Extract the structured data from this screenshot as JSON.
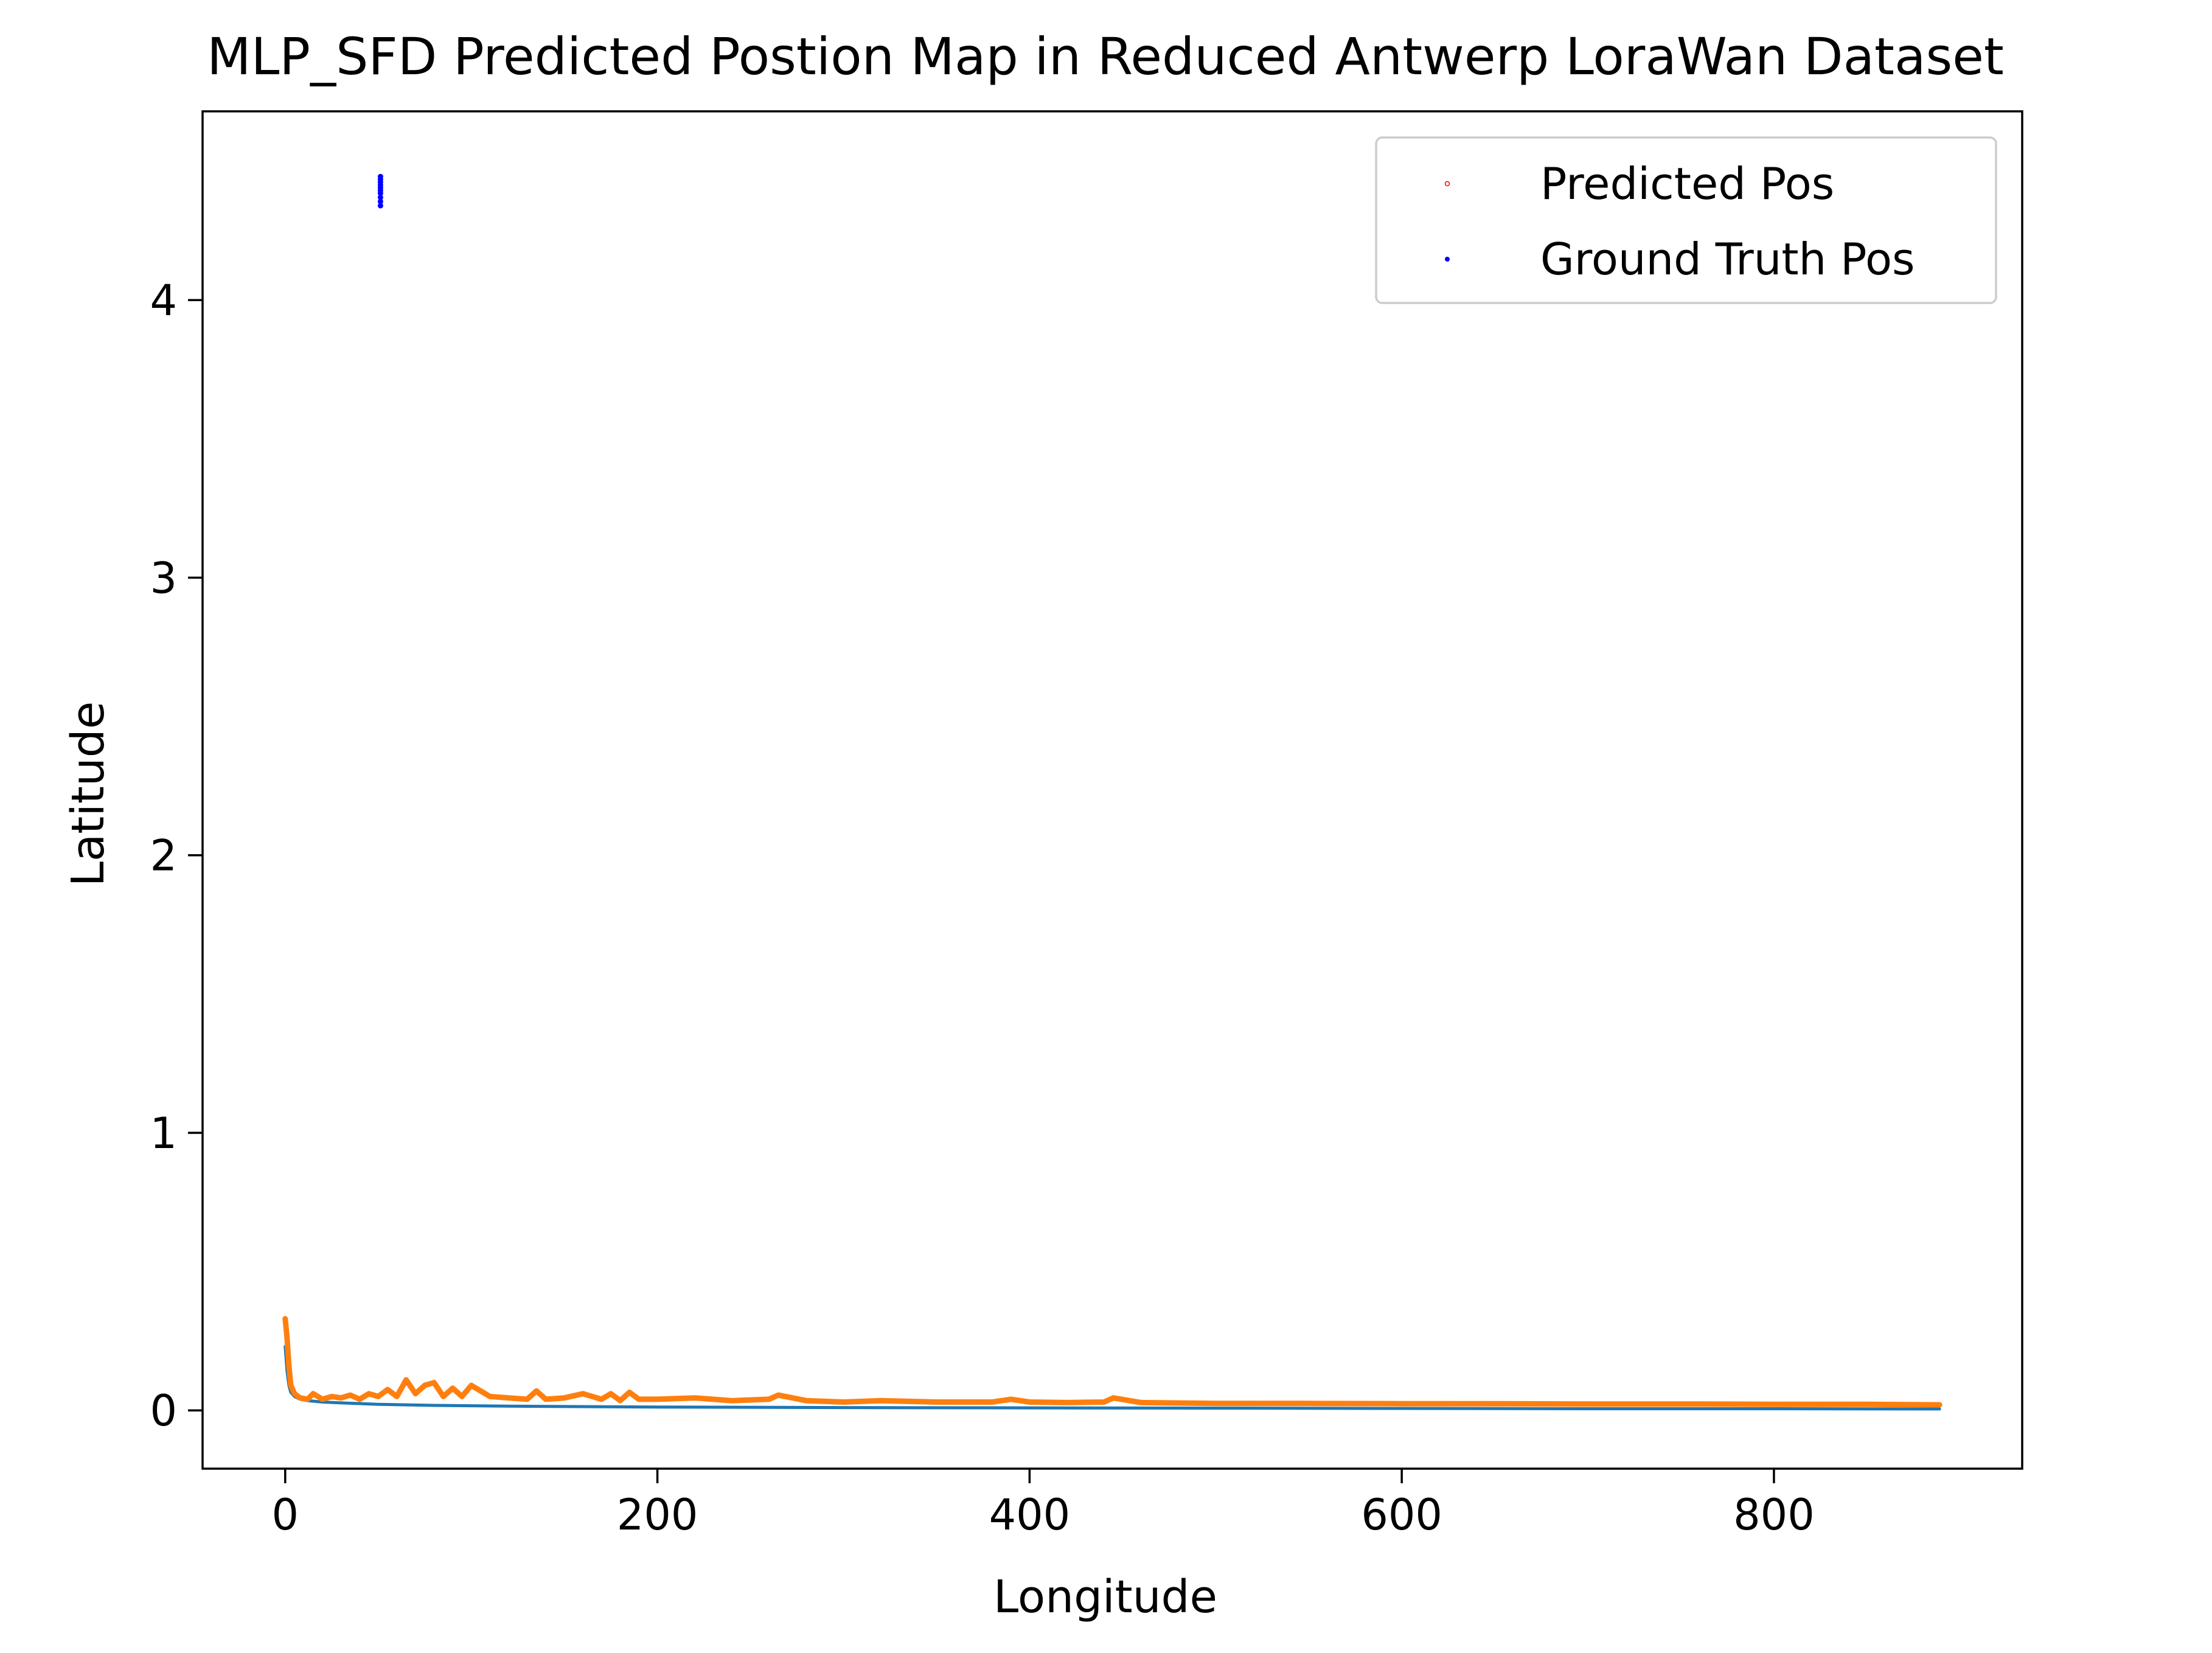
{
  "chart_data": {
    "type": "line",
    "title": "MLP_SFD Predicted Postion Map in Reduced Antwerp LoraWan Dataset",
    "xlabel": "Longitude",
    "ylabel": "Latitude",
    "xlim": [
      -44.4,
      933.4
    ],
    "ylim": [
      -0.21,
      4.68
    ],
    "xticks": [
      0,
      200,
      400,
      600,
      800
    ],
    "yticks": [
      0,
      1,
      2,
      3,
      4
    ],
    "grid": false,
    "legend": {
      "placement": "top-right",
      "entries": [
        {
          "label": "Predicted Pos",
          "color": "#ff0000",
          "marker": "hollow-point"
        },
        {
          "label": "Ground Truth Pos",
          "color": "#0000ff",
          "marker": "point"
        }
      ]
    },
    "ground_truth": {
      "name": "Ground Truth Pos",
      "color": "#0000ff",
      "x": [
        51.2,
        51.2,
        51.2,
        51.2,
        51.2,
        51.2,
        51.2,
        51.2,
        51.2,
        51.2
      ],
      "y": [
        4.34,
        4.355,
        4.37,
        4.385,
        4.395,
        4.405,
        4.415,
        4.425,
        4.435,
        4.445
      ]
    },
    "series": [
      {
        "color": "#1f77b4",
        "x": [
          0,
          1,
          2,
          3,
          5,
          8,
          12,
          20,
          30,
          50,
          80,
          120,
          200,
          300,
          400,
          500,
          600,
          700,
          800,
          889
        ],
        "y": [
          0.23,
          0.14,
          0.09,
          0.065,
          0.05,
          0.04,
          0.035,
          0.03,
          0.027,
          0.022,
          0.018,
          0.015,
          0.012,
          0.01,
          0.009,
          0.008,
          0.007,
          0.006,
          0.006,
          0.005
        ]
      },
      {
        "color": "#ff7f0e",
        "x": [
          0,
          1,
          2,
          3,
          5,
          8,
          12,
          15,
          20,
          25,
          30,
          35,
          40,
          45,
          50,
          55,
          60,
          65,
          70,
          75,
          80,
          85,
          90,
          95,
          100,
          110,
          120,
          130,
          135,
          140,
          150,
          160,
          170,
          175,
          180,
          185,
          190,
          200,
          220,
          240,
          260,
          265,
          280,
          300,
          320,
          350,
          380,
          390,
          400,
          420,
          440,
          445,
          460,
          500,
          550,
          600,
          650,
          700,
          750,
          800,
          850,
          889
        ],
        "y": [
          0.33,
          0.26,
          0.16,
          0.09,
          0.06,
          0.045,
          0.04,
          0.06,
          0.04,
          0.05,
          0.045,
          0.055,
          0.04,
          0.06,
          0.05,
          0.075,
          0.05,
          0.11,
          0.06,
          0.09,
          0.1,
          0.05,
          0.08,
          0.05,
          0.09,
          0.05,
          0.045,
          0.04,
          0.07,
          0.04,
          0.045,
          0.06,
          0.04,
          0.06,
          0.035,
          0.065,
          0.04,
          0.04,
          0.045,
          0.035,
          0.04,
          0.055,
          0.035,
          0.03,
          0.035,
          0.03,
          0.03,
          0.04,
          0.03,
          0.028,
          0.03,
          0.045,
          0.028,
          0.025,
          0.025,
          0.024,
          0.024,
          0.023,
          0.023,
          0.022,
          0.022,
          0.02
        ]
      }
    ]
  }
}
